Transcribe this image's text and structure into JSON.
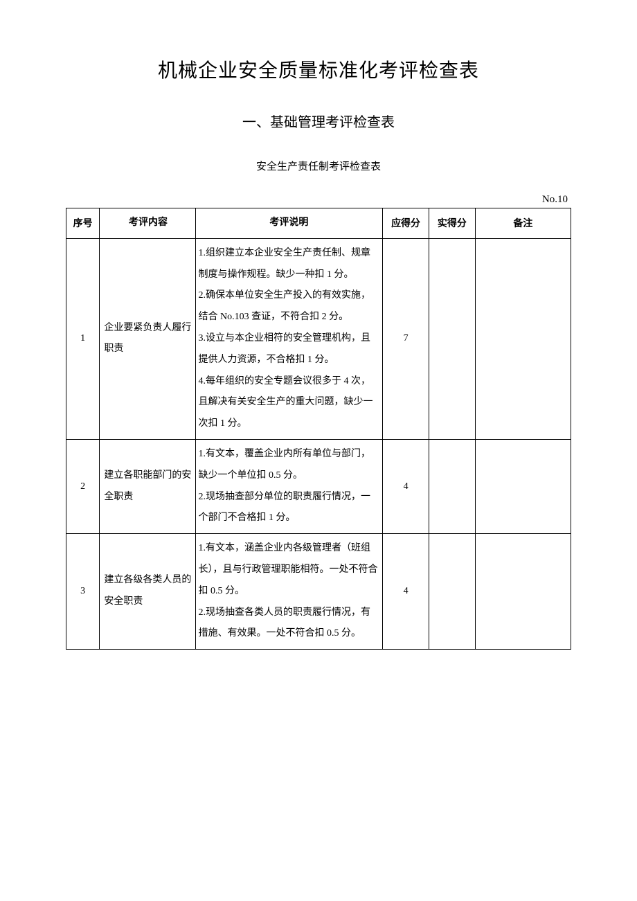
{
  "main_title": "机械企业安全质量标准化考评检查表",
  "sub_title": "一、基础管理考评检查表",
  "table_title": "安全生产责任制考评检查表",
  "table_no": "No.10",
  "columns": {
    "seq": "序号",
    "content": "考评内容",
    "desc": "考评说明",
    "score": "应得分",
    "actual": "实得分",
    "remark": "备注"
  },
  "rows": [
    {
      "seq": "1",
      "content": "企业要紧负责人履行职责",
      "desc": "1.组织建立本企业安全生产责任制、规章制度与操作规程。缺少一种扣 1 分。\n2.确保本单位安全生产投入的有效实施，结合 No.103 查证，不符合扣 2 分。\n3.设立与本企业相符的安全管理机构，且提供人力资源，不合格扣 1 分。\n4.每年组织的安全专题会议很多于 4 次，且解决有关安全生产的重大问题，缺少一次扣 1 分。",
      "score": "7",
      "actual": "",
      "remark": ""
    },
    {
      "seq": "2",
      "content": "建立各职能部门的安全职责",
      "desc": "1.有文本，覆盖企业内所有单位与部门，缺少一个单位扣 0.5 分。\n2.现场抽查部分单位的职责履行情况，一个部门不合格扣 1 分。",
      "score": "4",
      "actual": "",
      "remark": ""
    },
    {
      "seq": "3",
      "content": "建立各级各类人员的安全职责",
      "desc": "1.有文本，涵盖企业内各级管理者（班组长），且与行政管理职能相符。一处不符合扣 0.5 分。\n2.现场抽查各类人员的职责履行情况，有措施、有效果。一处不符合扣 0.5 分。",
      "score": "4",
      "actual": "",
      "remark": ""
    }
  ],
  "colors": {
    "background": "#ffffff",
    "text": "#000000",
    "border": "#000000"
  }
}
